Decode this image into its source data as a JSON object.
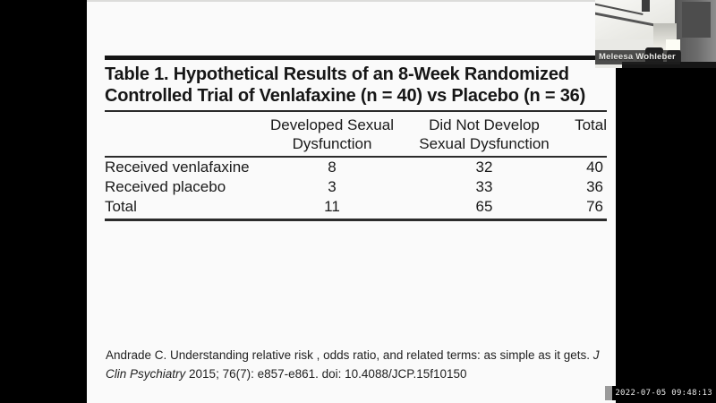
{
  "slide": {
    "table": {
      "title_line1": "Table 1. Hypothetical Results of an 8-Week Randomized",
      "title_line2": "Controlled Trial of Venlafaxine (n = 40) vs Placebo (n = 36)",
      "headers": [
        {
          "lines": [
            "",
            ""
          ]
        },
        {
          "lines": [
            "Developed Sexual",
            "Dysfunction"
          ]
        },
        {
          "lines": [
            "Did Not Develop",
            "Sexual Dysfunction"
          ]
        },
        {
          "lines": [
            "",
            "Total"
          ]
        }
      ],
      "rows": [
        {
          "label": "Received venlafaxine",
          "values": [
            "8",
            "32",
            "40"
          ]
        },
        {
          "label": "Received placebo",
          "values": [
            "3",
            "33",
            "36"
          ]
        },
        {
          "label": "Total",
          "values": [
            "11",
            "65",
            "76"
          ]
        }
      ]
    },
    "citation": {
      "line1_regular": "Andrade C. Understanding relative risk , odds ratio, and related terms: as simple as it gets. ",
      "line1_italic": "J",
      "line2_italic": "Clin Psychiatry",
      "line2_regular": " 2015; 76(7): e857-e861. doi: 10.4088/JCP.15f10150"
    }
  },
  "participant": {
    "name": "Meleesa Wohleber"
  },
  "recording": {
    "timestamp": "2022-07-05 09:48:13"
  },
  "colors": {
    "frame_background": "#000000",
    "slide_background": "#fafafa",
    "table_text": "#1a1a1a",
    "table_rule": "#2b2b2b",
    "timestamp_text": "#e8e8e8",
    "timestamp_marker": "#9a9a9a",
    "name_tag_background": "#202020"
  }
}
